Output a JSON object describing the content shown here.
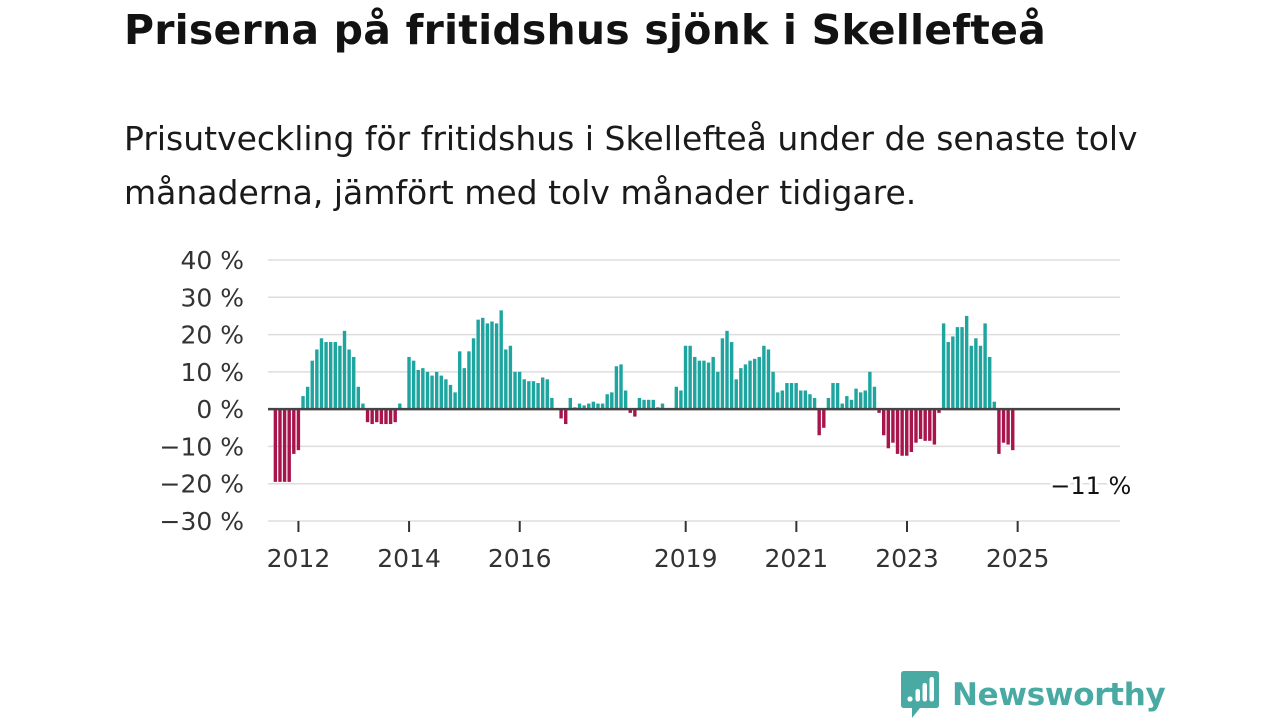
{
  "title": "Priserna på fritidshus sjönk i Skellefteå",
  "subtitle": "Prisutveckling för fritidshus i Skellefteå under de senaste tolv månaderna, jämfört med tolv månader tidigare.",
  "brand": {
    "name": "Newsworthy",
    "color": "#48aaa3"
  },
  "colors": {
    "positive": "#1ea5a0",
    "negative": "#a8154c",
    "grid": "#dddddd",
    "zero": "#444444"
  },
  "chart_data": {
    "type": "bar",
    "title": "Priserna på fritidshus sjönk i Skellefteå",
    "xlabel": "",
    "ylabel": "",
    "ylim": [
      -30,
      40
    ],
    "yticks": [
      40,
      30,
      20,
      10,
      0,
      -10,
      -20,
      -30
    ],
    "ytick_labels": [
      "40 %",
      "30 %",
      "20 %",
      "10 %",
      "0 %",
      "−10 %",
      "−20 %",
      "−30 %"
    ],
    "xlim": [
      2011.45,
      2026.85
    ],
    "xticks": [
      2012,
      2014,
      2016,
      2019,
      2021,
      2023,
      2025
    ],
    "xtick_labels": [
      "2012",
      "2014",
      "2016",
      "2019",
      "2021",
      "2023",
      "2025"
    ],
    "start": 2011.5,
    "step": 0.0833,
    "values": [
      0,
      -19.5,
      -19.5,
      -19.5,
      -19.5,
      -12,
      -11,
      3.5,
      6,
      13,
      16,
      19,
      18,
      18,
      18,
      17,
      21,
      16,
      14,
      6,
      1.5,
      -3.5,
      -4,
      -3.5,
      -4,
      -4,
      -4,
      -3.5,
      1.5,
      0,
      14,
      13,
      10.5,
      11,
      10,
      9,
      10,
      9,
      8,
      6.5,
      4.5,
      15.5,
      11,
      15.5,
      19,
      24,
      24.5,
      23,
      23.5,
      23,
      26.5,
      16,
      17,
      10,
      10,
      8,
      7.5,
      7.5,
      7,
      8.5,
      8,
      3,
      0,
      -2.5,
      -4,
      3,
      0.5,
      1.5,
      1,
      1.5,
      2,
      1.5,
      1.5,
      4,
      4.5,
      11.5,
      12,
      5,
      -1,
      -2,
      3,
      2.5,
      2.5,
      2.5,
      0.5,
      1.5,
      0,
      0,
      6,
      5,
      17,
      17,
      14,
      13,
      13,
      12.5,
      14,
      10,
      19,
      21,
      18,
      8,
      11,
      12,
      13,
      13.5,
      14,
      17,
      16,
      10,
      4.5,
      5,
      7,
      7,
      7,
      5,
      5,
      4,
      3,
      -7,
      -5,
      3,
      7,
      7,
      1.5,
      3.5,
      2.5,
      5.5,
      4.5,
      5,
      10,
      6,
      -1,
      -7,
      -10.5,
      -9,
      -12,
      -12.5,
      -12.5,
      -11.5,
      -9,
      -8,
      -8.5,
      -8.5,
      -9.5,
      -1,
      23,
      18,
      19.5,
      22,
      22,
      25,
      17,
      19,
      17,
      23,
      14,
      2,
      -12,
      -9,
      -9.5,
      -11
    ],
    "annotation": {
      "label": "−11 %",
      "x": 2026.25,
      "y": -11
    }
  }
}
